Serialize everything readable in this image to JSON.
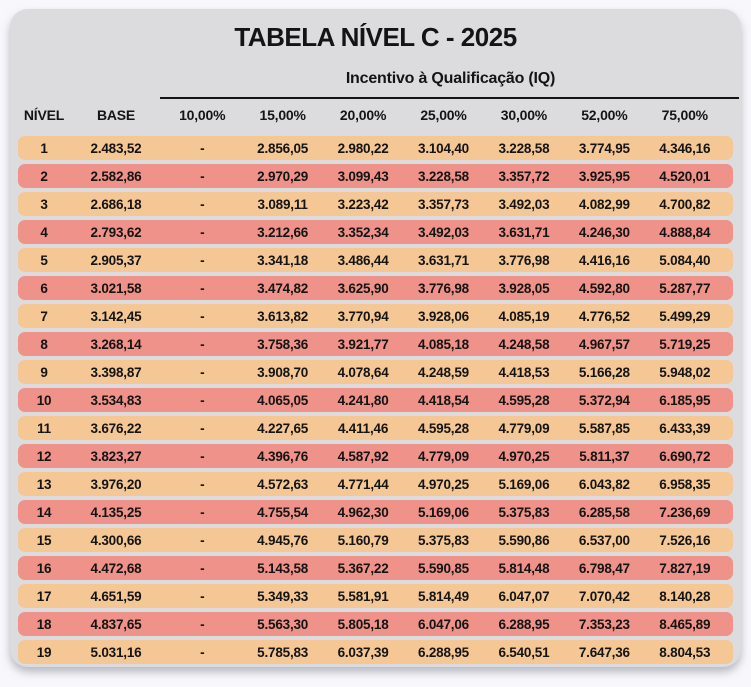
{
  "title": "TABELA NÍVEL C - 2025",
  "chart_data": {
    "type": "table",
    "title": "TABELA NÍVEL C - 2025",
    "group_header": "Incentivo à Qualificação (IQ)",
    "columns": [
      "NÍVEL",
      "BASE",
      "10,00%",
      "15,00%",
      "20,00%",
      "25,00%",
      "30,00%",
      "52,00%",
      "75,00%"
    ],
    "empty_cell_marker": "-",
    "rows": [
      [
        "1",
        "2.483,52",
        "-",
        "2.856,05",
        "2.980,22",
        "3.104,40",
        "3.228,58",
        "3.774,95",
        "4.346,16"
      ],
      [
        "2",
        "2.582,86",
        "-",
        "2.970,29",
        "3.099,43",
        "3.228,58",
        "3.357,72",
        "3.925,95",
        "4.520,01"
      ],
      [
        "3",
        "2.686,18",
        "-",
        "3.089,11",
        "3.223,42",
        "3.357,73",
        "3.492,03",
        "4.082,99",
        "4.700,82"
      ],
      [
        "4",
        "2.793,62",
        "-",
        "3.212,66",
        "3.352,34",
        "3.492,03",
        "3.631,71",
        "4.246,30",
        "4.888,84"
      ],
      [
        "5",
        "2.905,37",
        "-",
        "3.341,18",
        "3.486,44",
        "3.631,71",
        "3.776,98",
        "4.416,16",
        "5.084,40"
      ],
      [
        "6",
        "3.021,58",
        "-",
        "3.474,82",
        "3.625,90",
        "3.776,98",
        "3.928,05",
        "4.592,80",
        "5.287,77"
      ],
      [
        "7",
        "3.142,45",
        "-",
        "3.613,82",
        "3.770,94",
        "3.928,06",
        "4.085,19",
        "4.776,52",
        "5.499,29"
      ],
      [
        "8",
        "3.268,14",
        "-",
        "3.758,36",
        "3.921,77",
        "4.085,18",
        "4.248,58",
        "4.967,57",
        "5.719,25"
      ],
      [
        "9",
        "3.398,87",
        "-",
        "3.908,70",
        "4.078,64",
        "4.248,59",
        "4.418,53",
        "5.166,28",
        "5.948,02"
      ],
      [
        "10",
        "3.534,83",
        "-",
        "4.065,05",
        "4.241,80",
        "4.418,54",
        "4.595,28",
        "5.372,94",
        "6.185,95"
      ],
      [
        "11",
        "3.676,22",
        "-",
        "4.227,65",
        "4.411,46",
        "4.595,28",
        "4.779,09",
        "5.587,85",
        "6.433,39"
      ],
      [
        "12",
        "3.823,27",
        "-",
        "4.396,76",
        "4.587,92",
        "4.779,09",
        "4.970,25",
        "5.811,37",
        "6.690,72"
      ],
      [
        "13",
        "3.976,20",
        "-",
        "4.572,63",
        "4.771,44",
        "4.970,25",
        "5.169,06",
        "6.043,82",
        "6.958,35"
      ],
      [
        "14",
        "4.135,25",
        "-",
        "4.755,54",
        "4.962,30",
        "5.169,06",
        "5.375,83",
        "6.285,58",
        "7.236,69"
      ],
      [
        "15",
        "4.300,66",
        "-",
        "4.945,76",
        "5.160,79",
        "5.375,83",
        "5.590,86",
        "6.537,00",
        "7.526,16"
      ],
      [
        "16",
        "4.472,68",
        "-",
        "5.143,58",
        "5.367,22",
        "5.590,85",
        "5.814,48",
        "6.798,47",
        "7.827,19"
      ],
      [
        "17",
        "4.651,59",
        "-",
        "5.349,33",
        "5.581,91",
        "5.814,49",
        "6.047,07",
        "7.070,42",
        "8.140,28"
      ],
      [
        "18",
        "4.837,65",
        "-",
        "5.563,30",
        "5.805,18",
        "6.047,06",
        "6.288,95",
        "7.353,23",
        "8.465,89"
      ],
      [
        "19",
        "5.031,16",
        "-",
        "5.785,83",
        "6.037,39",
        "6.288,95",
        "6.540,51",
        "7.647,36",
        "8.804,53"
      ]
    ],
    "layout": {
      "legend_position": "none",
      "grid": false,
      "row_stripe_colors": [
        "#f4c794",
        "#ef9289"
      ],
      "panel_bg": "#dcdcde",
      "page_bg": "#f8f8fc",
      "rule_color": "#151515"
    }
  }
}
